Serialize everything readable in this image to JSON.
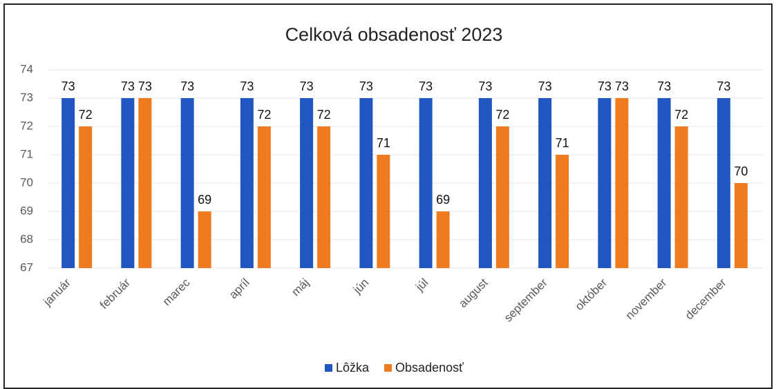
{
  "chart_data": {
    "type": "bar",
    "title": "Celková obsadenosť 2023",
    "categories": [
      "január",
      "február",
      "marec",
      "apríl",
      "máj",
      "jún",
      "júl",
      "august",
      "september",
      "október",
      "november",
      "december"
    ],
    "series": [
      {
        "name": "Lôžka",
        "color": "#1f56c0",
        "values": [
          73,
          73,
          73,
          73,
          73,
          73,
          73,
          73,
          73,
          73,
          73,
          73
        ]
      },
      {
        "name": "Obsadenosť",
        "color": "#f07a1e",
        "values": [
          72,
          73,
          69,
          72,
          72,
          71,
          69,
          72,
          71,
          73,
          72,
          70
        ]
      }
    ],
    "ylim": [
      67,
      74
    ],
    "yticks": [
      67,
      68,
      69,
      70,
      71,
      72,
      73,
      74
    ],
    "grid": true,
    "legend": "bottom"
  }
}
